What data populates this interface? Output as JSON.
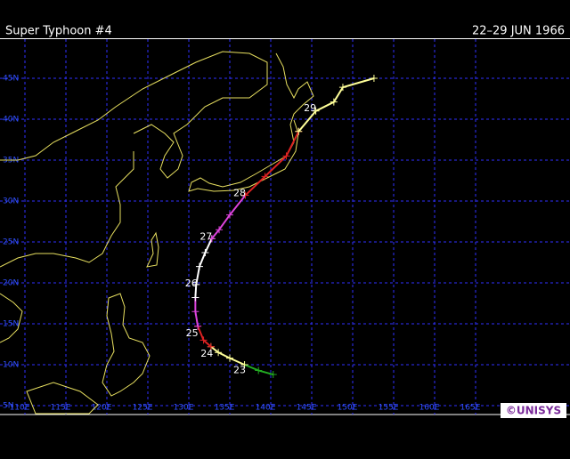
{
  "header": {
    "title": "Super Typhoon  #4",
    "dates": "22–29 JUN 1966"
  },
  "map": {
    "lat_ticks": [
      {
        "value": 45,
        "label": "45N"
      },
      {
        "value": 40,
        "label": "40N"
      },
      {
        "value": 35,
        "label": "35N"
      },
      {
        "value": 30,
        "label": "30N"
      },
      {
        "value": 25,
        "label": "25N"
      },
      {
        "value": 20,
        "label": "20N"
      },
      {
        "value": 15,
        "label": "15N"
      },
      {
        "value": 10,
        "label": "10N"
      },
      {
        "value": 5,
        "label": "5N"
      }
    ],
    "lon_ticks": [
      {
        "value": 110,
        "label": "110E"
      },
      {
        "value": 115,
        "label": "115E"
      },
      {
        "value": 120,
        "label": "120E"
      },
      {
        "value": 125,
        "label": "125E"
      },
      {
        "value": 130,
        "label": "130E"
      },
      {
        "value": 135,
        "label": "135E"
      },
      {
        "value": 140,
        "label": "140E"
      },
      {
        "value": 145,
        "label": "145E"
      },
      {
        "value": 150,
        "label": "150E"
      },
      {
        "value": 155,
        "label": "155E"
      },
      {
        "value": 160,
        "label": "160E"
      },
      {
        "value": 165,
        "label": "165E"
      }
    ],
    "track": [
      {
        "color": "#22aa22",
        "lon": [
          140.3,
          138.5,
          136.8
        ],
        "lat": [
          8.8,
          9.3,
          10.0
        ]
      },
      {
        "color": "#ffff99",
        "lon": [
          136.8,
          135.0,
          133.6,
          132.7
        ],
        "lat": [
          10.0,
          10.8,
          11.5,
          12.2
        ]
      },
      {
        "color": "#dd2222",
        "lon": [
          132.7,
          131.8,
          131.1
        ],
        "lat": [
          12.2,
          13.0,
          14.7
        ]
      },
      {
        "color": "#dd44dd",
        "lon": [
          131.1,
          130.8,
          130.8
        ],
        "lat": [
          14.7,
          16.5,
          18.2
        ]
      },
      {
        "color": "#ffffff",
        "lon": [
          130.8,
          130.9,
          131.3,
          132.0,
          132.8
        ],
        "lat": [
          18.2,
          19.8,
          22.0,
          23.7,
          25.4
        ]
      },
      {
        "color": "#dd44dd",
        "lon": [
          132.8,
          133.7,
          135.0,
          136.9
        ],
        "lat": [
          25.4,
          26.5,
          28.3,
          30.7
        ]
      },
      {
        "color": "#dd2222",
        "lon": [
          136.9,
          139.3,
          141.9,
          143.4
        ],
        "lat": [
          30.7,
          33.0,
          35.5,
          38.5
        ]
      },
      {
        "color": "#ffff99",
        "lon": [
          143.4,
          145.5,
          147.7,
          148.8,
          152.6
        ],
        "lat": [
          38.5,
          41.0,
          42.1,
          43.9,
          45.0
        ]
      }
    ],
    "day_labels": [
      {
        "label": "23",
        "lon": 136.2,
        "lat": 9.3
      },
      {
        "label": "24",
        "lon": 132.2,
        "lat": 11.3
      },
      {
        "label": "25",
        "lon": 130.4,
        "lat": 13.8
      },
      {
        "label": "26",
        "lon": 130.3,
        "lat": 19.9
      },
      {
        "label": "27",
        "lon": 132.1,
        "lat": 25.6
      },
      {
        "label": "28",
        "lon": 136.2,
        "lat": 30.9
      },
      {
        "label": "29",
        "lon": 144.8,
        "lat": 41.3
      }
    ]
  },
  "logo": "©UNISYS"
}
